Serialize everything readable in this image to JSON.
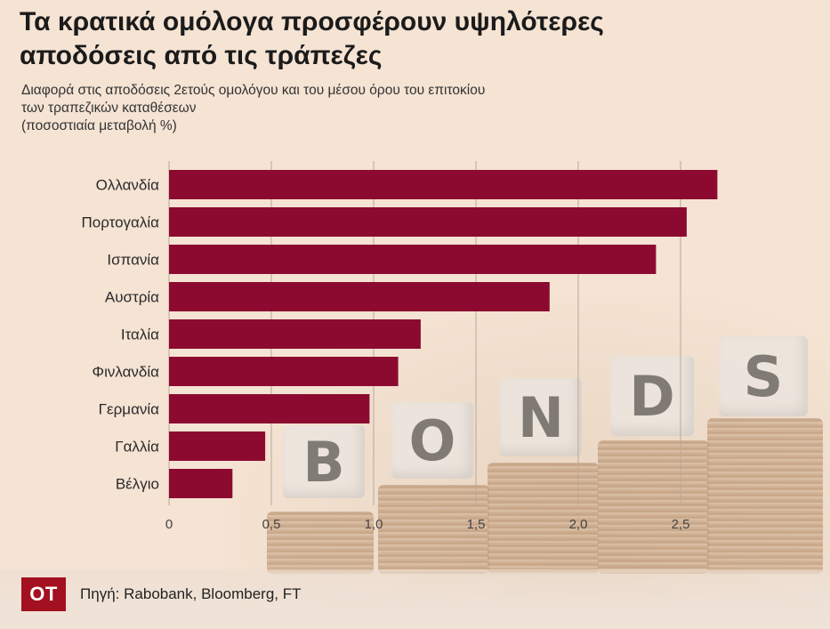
{
  "title_line1": "Τα κρατικά ομόλογα προσφέρουν υψηλότερες",
  "title_line2": "αποδόσεις από τις τράπεζες",
  "subtitle_line1": "Διαφορά στις αποδόσεις 2ετούς ομολόγου και του μέσου όρου του επιτοκίου",
  "subtitle_line2": "των τραπεζικών καταθέσεων",
  "subtitle_line3": "(ποσοστιαία μεταβολή %)",
  "logo_text": "OT",
  "source": "Πηγή: Rabobank, Bloomberg, FT",
  "background_tiles": [
    "B",
    "O",
    "N",
    "D",
    "S"
  ],
  "colors": {
    "bar": "#8c0a30",
    "background": "#f5e3d3",
    "logo": "#a3101f"
  },
  "chart_data": {
    "type": "bar",
    "orientation": "horizontal",
    "categories": [
      "Ολλανδία",
      "Πορτογαλία",
      "Ισπανία",
      "Αυστρία",
      "Ιταλία",
      "Φινλανδία",
      "Γερμανία",
      "Γαλλία",
      "Βέλγιο"
    ],
    "values": [
      2.68,
      2.53,
      2.38,
      1.86,
      1.23,
      1.12,
      0.98,
      0.47,
      0.31
    ],
    "x_ticks": [
      "0",
      "0,5",
      "1,0",
      "1,5",
      "2,0",
      "2,5"
    ],
    "x_tick_values": [
      0,
      0.5,
      1.0,
      1.5,
      2.0,
      2.5
    ],
    "xlim": [
      0,
      2.7
    ],
    "grid": "vertical"
  }
}
